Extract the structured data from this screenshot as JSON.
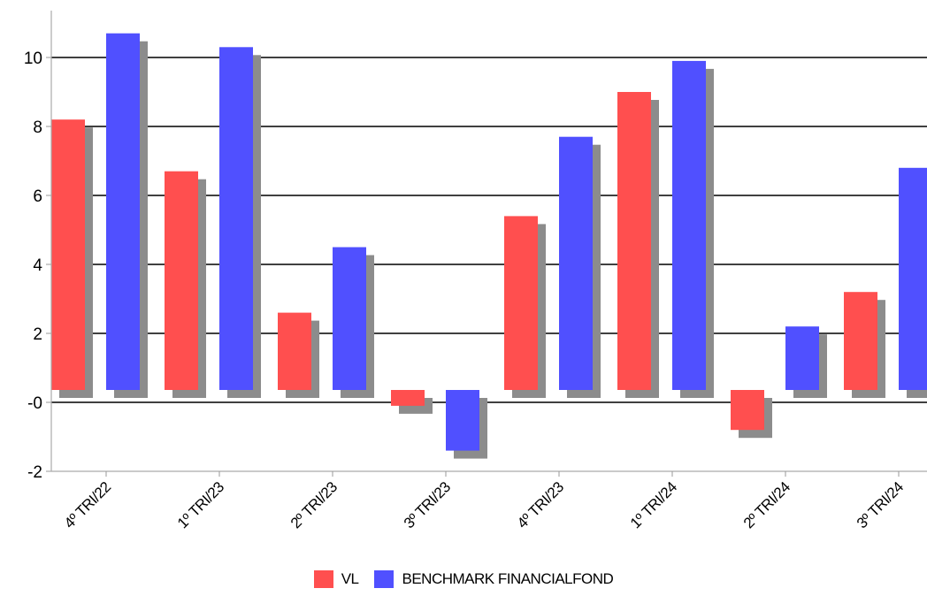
{
  "chart_data": {
    "type": "bar",
    "categories": [
      "4º TRI/22",
      "1º TRI/23",
      "2º TRI/23",
      "3º TRI/23",
      "4º TRI/23",
      "1º TRI/24",
      "2º TRI/24",
      "3º TRI/24"
    ],
    "series": [
      {
        "name": "VL",
        "color": "#ff4f4f",
        "values": [
          8.2,
          6.7,
          2.6,
          -0.1,
          5.4,
          9.0,
          -0.8,
          3.2
        ]
      },
      {
        "name": "BENCHMARK FINANCIALFOND",
        "color": "#5050ff",
        "values": [
          10.7,
          10.3,
          4.5,
          -1.4,
          7.7,
          9.9,
          2.2,
          6.8
        ]
      }
    ],
    "yticks": [
      "-2",
      "-0",
      "2",
      "4",
      "6",
      "8",
      "10"
    ],
    "ylim": [
      -2,
      11
    ],
    "grid": true,
    "shadow_color": "#8c8c8c",
    "legend_position": "bottom-center"
  }
}
